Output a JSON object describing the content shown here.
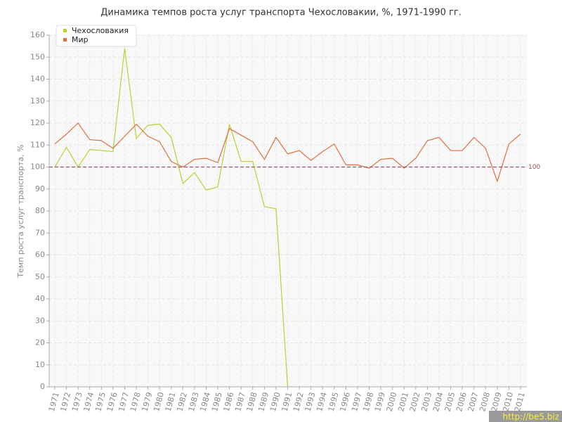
{
  "chart_data": {
    "type": "line",
    "title": "Динамика темпов роста услуг транспорта Чехословакии, %, 1971-1990 гг.",
    "y_label": "Темп роста услуг транспорта, %",
    "categories": [
      "1971",
      "1972",
      "1973",
      "1974",
      "1975",
      "1976",
      "1977",
      "1978",
      "1979",
      "1980",
      "1981",
      "1982",
      "1983",
      "1984",
      "1985",
      "1986",
      "1987",
      "1988",
      "1989",
      "1990",
      "1991",
      "1992",
      "1993",
      "1994",
      "1995",
      "1996",
      "1997",
      "1998",
      "1999",
      "2000",
      "2001",
      "2002",
      "2003",
      "2004",
      "2005",
      "2006",
      "2007",
      "2008",
      "2009",
      "2010",
      "2011"
    ],
    "series": [
      {
        "name": "Чехословакия",
        "color": "#b5d334",
        "values": [
          100,
          109,
          100,
          108,
          107.5,
          107,
          154,
          113,
          119,
          119.5,
          113.5,
          92.5,
          97.5,
          89.5,
          91,
          119.5,
          102.5,
          102.5,
          82,
          81,
          0,
          null,
          null,
          null,
          null,
          null,
          null,
          null,
          null,
          null,
          null,
          null,
          null,
          null,
          null,
          null,
          null,
          null,
          null,
          null,
          null
        ]
      },
      {
        "name": "Мир",
        "color": "#e0703f",
        "values": [
          110.5,
          115,
          120,
          112.5,
          112,
          108.5,
          114,
          119.5,
          114,
          111.5,
          102.5,
          100,
          103.5,
          104,
          102,
          117.5,
          114.5,
          111.5,
          103.5,
          113.5,
          106,
          107.5,
          103,
          107,
          110.5,
          101,
          101,
          99.5,
          103.5,
          104,
          99.5,
          104,
          112,
          113.5,
          107.5,
          107.5,
          113.5,
          108.5,
          93.5,
          110.5,
          115
        ]
      }
    ],
    "reference_line": 100,
    "ylim": [
      0,
      160
    ],
    "yticks": [
      0,
      10,
      20,
      30,
      40,
      50,
      60,
      70,
      80,
      90,
      100,
      110,
      120,
      130,
      140,
      150,
      160
    ],
    "grid": true,
    "legend": "top-left",
    "watermark": "http://be5.biz"
  }
}
